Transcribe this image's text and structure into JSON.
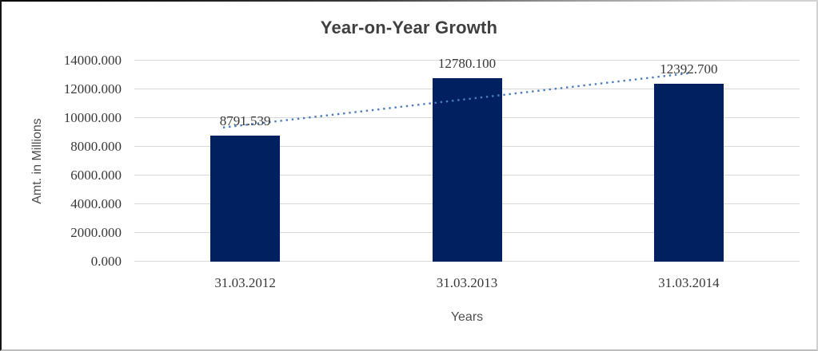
{
  "chart_data": {
    "type": "bar",
    "title": "Year-on-Year Growth",
    "xlabel": "Years",
    "ylabel": "Amt. in Millions",
    "categories": [
      "31.03.2012",
      "31.03.2013",
      "31.03.2014"
    ],
    "values": [
      8791.539,
      12780.1,
      12392.7
    ],
    "data_labels": [
      "8791.539",
      "12780.100",
      "12392.700"
    ],
    "yticks": [
      {
        "value": 0,
        "label": "0.000"
      },
      {
        "value": 2000,
        "label": "2000.000"
      },
      {
        "value": 4000,
        "label": "4000.000"
      },
      {
        "value": 6000,
        "label": "6000.000"
      },
      {
        "value": 8000,
        "label": "8000.000"
      },
      {
        "value": 10000,
        "label": "10000.000"
      },
      {
        "value": 12000,
        "label": "12000.000"
      },
      {
        "value": 14000,
        "label": "14000.000"
      }
    ],
    "ylim": [
      0,
      14000
    ],
    "grid": true,
    "legend": "none",
    "trendline": {
      "type": "linear",
      "style": "dotted"
    },
    "colors": {
      "bar": "#002060",
      "trendline": "#4A7EBB",
      "gridline": "#D9D9D9",
      "title_text": "#3F3F3F",
      "tick_text": "#383838",
      "axis_title_text": "#4D4D4D"
    }
  }
}
